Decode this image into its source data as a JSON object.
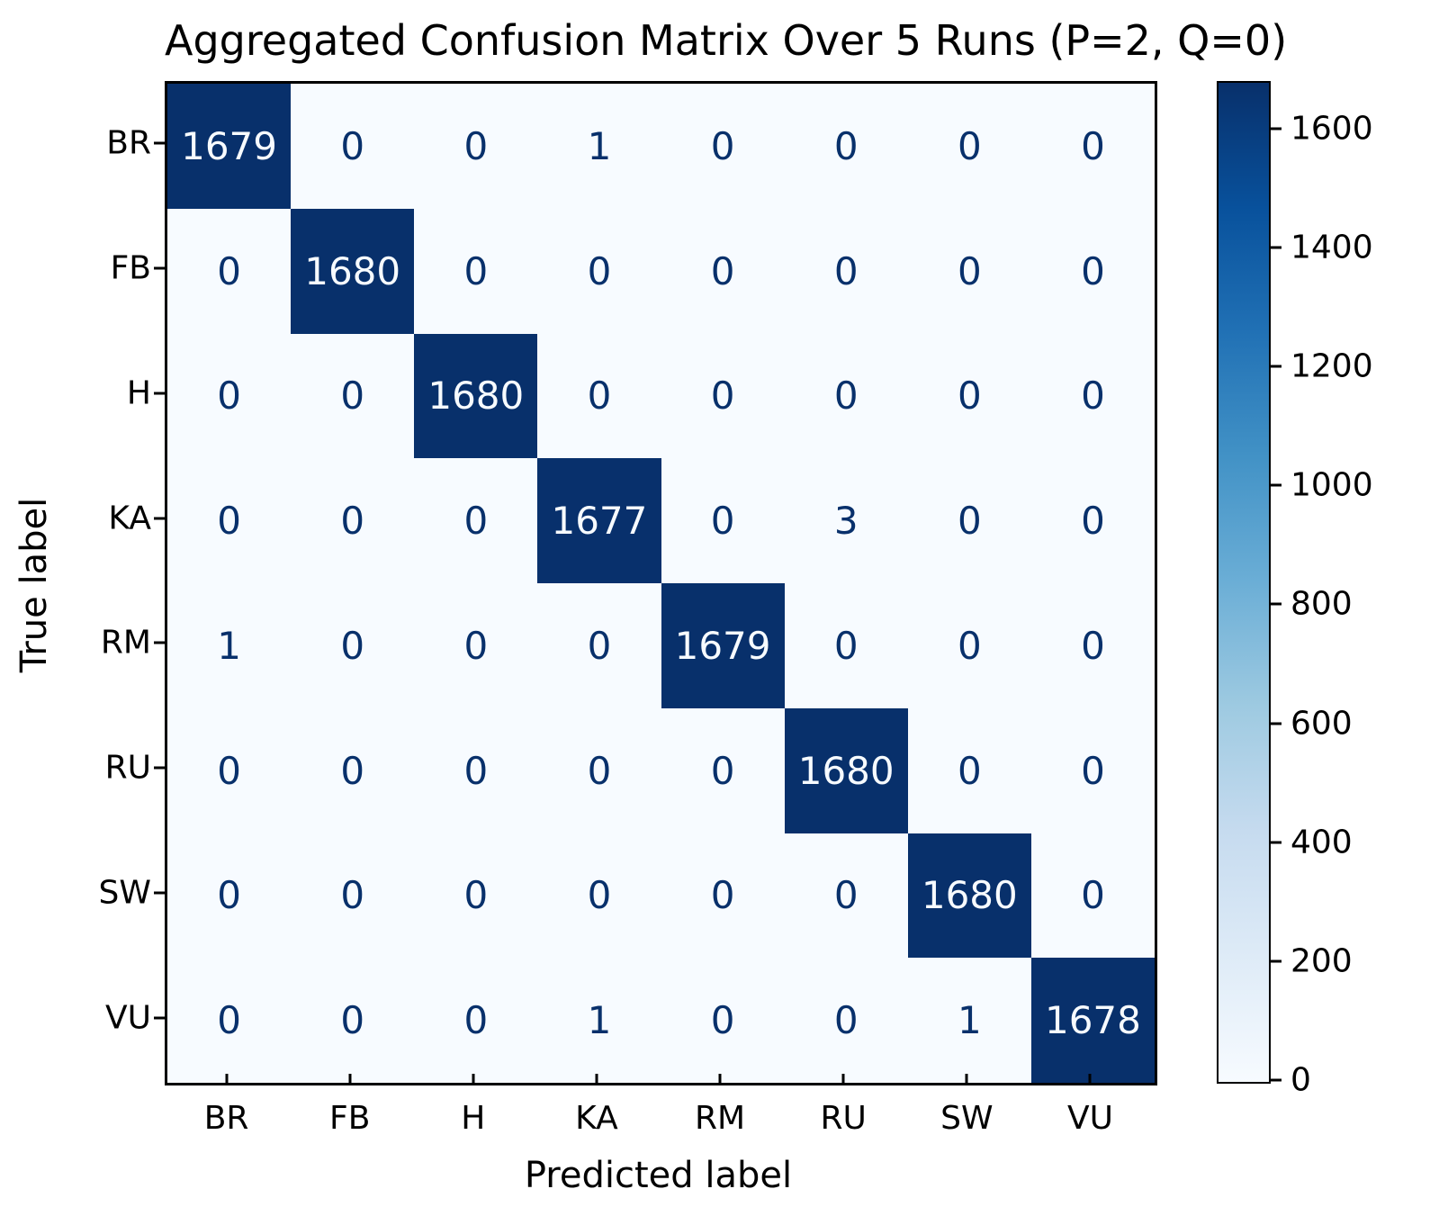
{
  "title": "Aggregated Confusion Matrix Over 5 Runs (P=2, Q=0)",
  "xlabel": "Predicted label",
  "ylabel": "True label",
  "chart_data": {
    "type": "heatmap",
    "title": "Aggregated Confusion Matrix Over 5 Runs (P=2, Q=0)",
    "xlabel": "Predicted label",
    "ylabel": "True label",
    "categories": [
      "BR",
      "FB",
      "H",
      "KA",
      "RM",
      "RU",
      "SW",
      "VU"
    ],
    "matrix": [
      [
        1679,
        0,
        0,
        1,
        0,
        0,
        0,
        0
      ],
      [
        0,
        1680,
        0,
        0,
        0,
        0,
        0,
        0
      ],
      [
        0,
        0,
        1680,
        0,
        0,
        0,
        0,
        0
      ],
      [
        0,
        0,
        0,
        1677,
        0,
        3,
        0,
        0
      ],
      [
        1,
        0,
        0,
        0,
        1679,
        0,
        0,
        0
      ],
      [
        0,
        0,
        0,
        0,
        0,
        1680,
        0,
        0
      ],
      [
        0,
        0,
        0,
        0,
        0,
        0,
        1680,
        0
      ],
      [
        0,
        0,
        0,
        1,
        0,
        0,
        1,
        1678
      ]
    ],
    "colorbar": {
      "vmin": 0,
      "vmax": 1680,
      "ticks": [
        0,
        200,
        400,
        600,
        800,
        1000,
        1200,
        1400,
        1600
      ]
    },
    "colors": {
      "cmap_name": "Blues",
      "cmap_stops": [
        "#f7fbff",
        "#deebf7",
        "#c6dbef",
        "#9ecae1",
        "#6baed6",
        "#4292c6",
        "#2171b5",
        "#08519c",
        "#08306b"
      ],
      "annotation_dark": "#08306b",
      "annotation_light": "#f7fbff"
    },
    "legend_position": "colorbar-right",
    "grid": false
  }
}
